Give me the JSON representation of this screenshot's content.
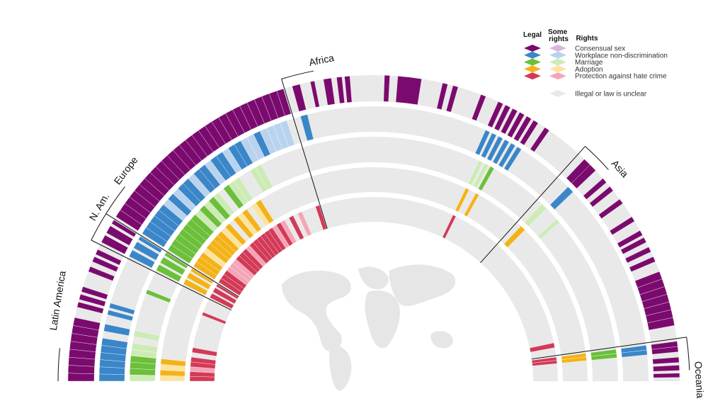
{
  "chart_data": {
    "type": "radial-heatmap",
    "title": "",
    "legend": {
      "headers": {
        "legal": "Legal",
        "some_rights": "Some rights",
        "rights": "Rights"
      },
      "rights": [
        {
          "key": "consensual",
          "label": "Consensual sex",
          "legal_color": "#7b0a6e",
          "some_color": "#d7b8dc"
        },
        {
          "key": "workplace",
          "label": "Workplace non-discrimination",
          "legal_color": "#3a86c8",
          "some_color": "#b9d3ef"
        },
        {
          "key": "marriage",
          "label": "Marriage",
          "legal_color": "#6cbf3a",
          "some_color": "#cdebb6"
        },
        {
          "key": "adoption",
          "label": "Adoption",
          "legal_color": "#f3b318",
          "some_color": "#fbe3a1"
        },
        {
          "key": "hate",
          "label": "Protection against hate crime",
          "legal_color": "#d23a57",
          "some_color": "#f5a5b8"
        }
      ],
      "unclear": {
        "label": "Illegal or law is unclear",
        "color": "#e9e9e9"
      }
    },
    "rings": [
      "consensual",
      "workplace",
      "marriage",
      "adoption",
      "hate"
    ],
    "regions": [
      {
        "name": "Latin America",
        "start": 180,
        "end": 153.5,
        "rows": [
          [
            180.0,
            178.5,
            "L",
            "L",
            "S",
            "S",
            "L"
          ],
          [
            178.5,
            177.0,
            "L",
            "L",
            "L",
            "L",
            "L"
          ],
          [
            177.0,
            175.5,
            "L",
            "L",
            "L",
            "S",
            "S"
          ],
          [
            175.5,
            174.0,
            "L",
            "L",
            "L",
            "L",
            "L"
          ],
          [
            174.0,
            172.5,
            "L",
            "L",
            "S",
            "N",
            "L"
          ],
          [
            172.5,
            171.0,
            "L",
            "L",
            "S",
            "N",
            "N"
          ],
          [
            171.0,
            169.5,
            "L",
            "N",
            "N",
            "N",
            "L"
          ],
          [
            169.5,
            168.0,
            "L",
            "L",
            "S",
            "N",
            "N"
          ],
          [
            166.0,
            165.0,
            "L",
            "L",
            "N",
            "N",
            "N"
          ],
          [
            164.5,
            163.5,
            "L",
            "L",
            "N",
            "N",
            "N"
          ],
          [
            163.0,
            162.0,
            "L",
            "N",
            "N",
            "N",
            "N"
          ],
          [
            159.0,
            158.0,
            "L",
            "N",
            "L",
            "N",
            "L"
          ],
          [
            157.0,
            156.0,
            "L",
            "N",
            "N",
            "N",
            "N"
          ],
          [
            155.5,
            154.5,
            "L",
            "N",
            "N",
            "N",
            "N"
          ]
        ]
      },
      {
        "name": "N. Am.",
        "start": 153.5,
        "end": 148.0,
        "rows": [
          [
            153.0,
            151.5,
            "L",
            "L",
            "L",
            "L",
            "L"
          ],
          [
            151.0,
            149.5,
            "L",
            "L",
            "L",
            "L",
            "L"
          ],
          [
            149.0,
            148.2,
            "L",
            "L",
            "L",
            "L",
            "L"
          ]
        ]
      },
      {
        "name": "Europe",
        "start": 148.0,
        "end": 107.0,
        "rows": [
          [
            147.5,
            146.0,
            "L",
            "L",
            "L",
            "L",
            "L"
          ],
          [
            146.0,
            144.5,
            "L",
            "L",
            "L",
            "L",
            "L"
          ],
          [
            144.5,
            143.0,
            "L",
            "L",
            "L",
            "L",
            "L"
          ],
          [
            143.0,
            141.5,
            "L",
            "L",
            "L",
            "S",
            "S"
          ],
          [
            141.5,
            140.0,
            "L",
            "L",
            "L",
            "L",
            "S"
          ],
          [
            140.0,
            138.5,
            "L",
            "S",
            "L",
            "L",
            "S"
          ],
          [
            138.5,
            137.0,
            "L",
            "L",
            "L",
            "L",
            "L"
          ],
          [
            137.0,
            135.5,
            "L",
            "S",
            "S",
            "L",
            "L"
          ],
          [
            135.5,
            134.0,
            "L",
            "L",
            "L",
            "S",
            "L"
          ],
          [
            134.0,
            132.5,
            "L",
            "L",
            "S",
            "L",
            "S"
          ],
          [
            132.5,
            131.0,
            "L",
            "S",
            "L",
            "N",
            "L"
          ],
          [
            131.0,
            129.5,
            "L",
            "L",
            "S",
            "L",
            "L"
          ],
          [
            129.5,
            128.0,
            "L",
            "L",
            "N",
            "S",
            "L"
          ],
          [
            128.0,
            126.5,
            "L",
            "S",
            "L",
            "L",
            "L"
          ],
          [
            126.5,
            125.0,
            "L",
            "L",
            "S",
            "N",
            "L"
          ],
          [
            125.0,
            123.5,
            "L",
            "L",
            "S",
            "S",
            "L"
          ],
          [
            123.5,
            122.0,
            "L",
            "S",
            "N",
            "L",
            "S"
          ],
          [
            122.0,
            120.5,
            "L",
            "L",
            "N",
            "N",
            "L"
          ],
          [
            120.5,
            119.0,
            "L",
            "L",
            "S",
            "N",
            "S"
          ],
          [
            119.0,
            117.5,
            "L",
            "S",
            "S",
            "N",
            "N"
          ],
          [
            117.5,
            116.0,
            "L",
            "S",
            "N",
            "N",
            "L"
          ],
          [
            116.0,
            114.5,
            "L",
            "L",
            "N",
            "N",
            "N"
          ],
          [
            114.5,
            113.0,
            "L",
            "S",
            "N",
            "N",
            "S"
          ],
          [
            113.0,
            111.5,
            "L",
            "S",
            "N",
            "N",
            "N"
          ],
          [
            111.5,
            110.0,
            "L",
            "S",
            "N",
            "N",
            "N"
          ],
          [
            110.0,
            108.5,
            "L",
            "S",
            "N",
            "N",
            "N"
          ],
          [
            108.5,
            107.2,
            "L",
            "N",
            "N",
            "N",
            "L"
          ]
        ]
      },
      {
        "name": "Africa",
        "start": 107.0,
        "end": 48.0,
        "rows": [
          [
            105.5,
            104.0,
            "L",
            "L",
            "N",
            "N",
            "N"
          ],
          [
            102.0,
            101.2,
            "L",
            "N",
            "N",
            "N",
            "N"
          ],
          [
            99.5,
            98.0,
            "L",
            "N",
            "N",
            "N",
            "N"
          ],
          [
            97.0,
            96.0,
            "L",
            "N",
            "N",
            "N",
            "N"
          ],
          [
            95.5,
            94.5,
            "L",
            "N",
            "N",
            "N",
            "N"
          ],
          [
            88.0,
            87.0,
            "L",
            "N",
            "N",
            "N",
            "N"
          ],
          [
            85.5,
            81.0,
            "L",
            "N",
            "N",
            "N",
            "N"
          ],
          [
            77.0,
            76.0,
            "L",
            "N",
            "N",
            "N",
            "N"
          ],
          [
            75.0,
            74.0,
            "L",
            "N",
            "N",
            "N",
            "N"
          ],
          [
            69.5,
            68.5,
            "L",
            "N",
            "N",
            "N",
            "N"
          ],
          [
            66.0,
            65.0,
            "L",
            "L",
            "N",
            "N",
            "N"
          ],
          [
            64.5,
            63.5,
            "L",
            "L",
            "S",
            "L",
            "L"
          ],
          [
            63.0,
            62.0,
            "L",
            "L",
            "S",
            "N",
            "N"
          ],
          [
            61.5,
            60.5,
            "L",
            "L",
            "L",
            "L",
            "N"
          ],
          [
            60.0,
            59.0,
            "L",
            "L",
            "N",
            "N",
            "N"
          ],
          [
            58.5,
            57.5,
            "L",
            "L",
            "N",
            "N",
            "N"
          ],
          [
            56.0,
            55.0,
            "L",
            "N",
            "N",
            "N",
            "N"
          ]
        ]
      },
      {
        "name": "Asia",
        "start": 48.0,
        "end": 8.0,
        "rows": [
          [
            46.5,
            45.0,
            "L",
            "N",
            "S",
            "L",
            "N"
          ],
          [
            45.0,
            43.5,
            "L",
            "L",
            "N",
            "N",
            "N"
          ],
          [
            41.5,
            40.5,
            "L",
            "N",
            "S",
            "N",
            "N"
          ],
          [
            39.5,
            38.5,
            "L",
            "N",
            "N",
            "N",
            "N"
          ],
          [
            36.5,
            35.5,
            "L",
            "N",
            "N",
            "N",
            "N"
          ],
          [
            32.5,
            31.5,
            "L",
            "N",
            "N",
            "N",
            "N"
          ],
          [
            29.5,
            28.5,
            "L",
            "N",
            "N",
            "N",
            "N"
          ],
          [
            28.0,
            27.0,
            "L",
            "N",
            "N",
            "N",
            "N"
          ],
          [
            26.0,
            25.0,
            "L",
            "N",
            "N",
            "N",
            "N"
          ],
          [
            24.0,
            23.0,
            "L",
            "N",
            "N",
            "N",
            "N"
          ],
          [
            21.0,
            19.5,
            "L",
            "N",
            "N",
            "N",
            "N"
          ],
          [
            19.5,
            18.0,
            "L",
            "N",
            "N",
            "N",
            "N"
          ],
          [
            18.0,
            16.5,
            "L",
            "N",
            "N",
            "N",
            "N"
          ],
          [
            16.5,
            15.0,
            "L",
            "N",
            "N",
            "N",
            "N"
          ],
          [
            15.0,
            13.5,
            "L",
            "N",
            "N",
            "N",
            "N"
          ],
          [
            13.5,
            12.0,
            "L",
            "N",
            "N",
            "N",
            "N"
          ],
          [
            12.0,
            10.5,
            "L",
            "N",
            "N",
            "N",
            "L"
          ]
        ]
      },
      {
        "name": "Oceania",
        "start": 8.0,
        "end": 0.0,
        "rows": [
          [
            7.5,
            6.5,
            "L",
            "L",
            "L",
            "L",
            "L"
          ],
          [
            6.5,
            5.5,
            "L",
            "L",
            "L",
            "L",
            "L"
          ],
          [
            4.5,
            3.5,
            "L",
            "N",
            "N",
            "N",
            "N"
          ],
          [
            3.0,
            2.0,
            "L",
            "N",
            "N",
            "N",
            "N"
          ],
          [
            1.5,
            0.7,
            "L",
            "N",
            "N",
            "N",
            "N"
          ]
        ]
      }
    ]
  }
}
